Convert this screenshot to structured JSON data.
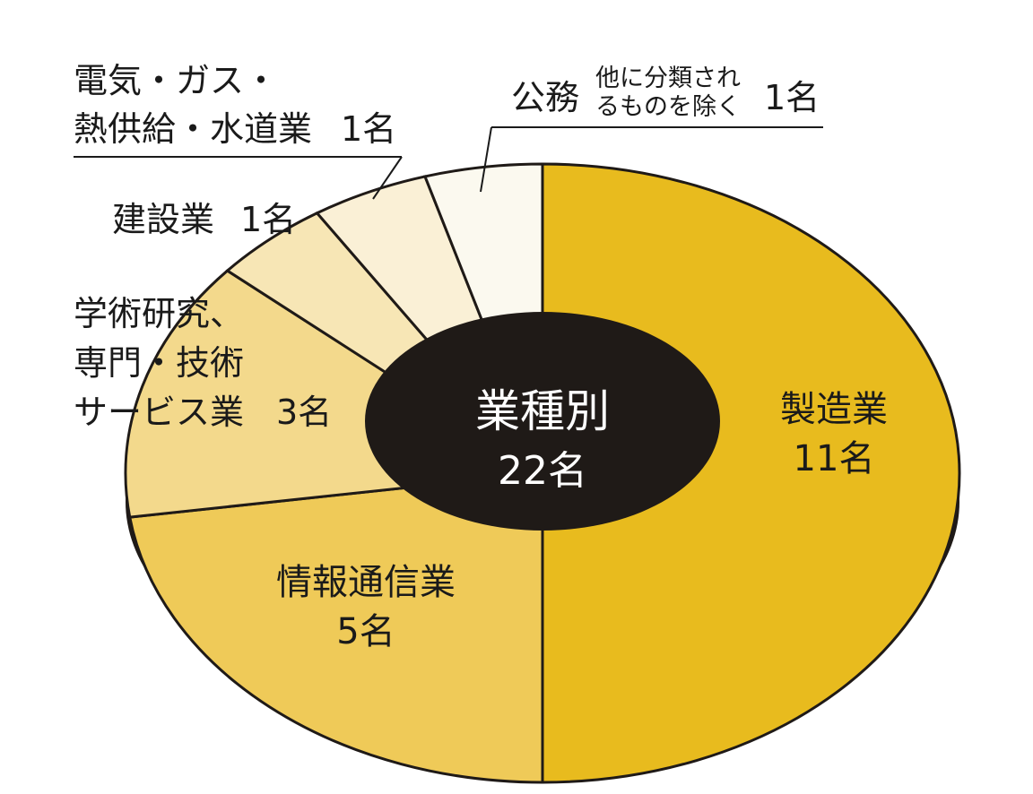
{
  "chart_data": {
    "type": "pie",
    "title": "業種別",
    "total_label": "22名",
    "total": 22,
    "slices": [
      {
        "label_lines": [
          "製造業"
        ],
        "value": 11,
        "value_label": "11名",
        "color": "#e8bb1e"
      },
      {
        "label_lines": [
          "情報通信業"
        ],
        "value": 5,
        "value_label": "5名",
        "color": "#efca58"
      },
      {
        "label_lines": [
          "学術研究、",
          "専門・技術",
          "サービス業"
        ],
        "value": 3,
        "value_label": "3名",
        "color": "#f3d98c"
      },
      {
        "label_lines": [
          "建設業"
        ],
        "value": 1,
        "value_label": "1名",
        "color": "#f7e6b5"
      },
      {
        "label_lines": [
          "電気・ガス・",
          "熱供給・水道業"
        ],
        "value": 1,
        "value_label": "1名",
        "color": "#faf0d6"
      },
      {
        "label_lines": [
          "公務"
        ],
        "note_lines": [
          "他に分類され",
          "るものを除く"
        ],
        "value": 1,
        "value_label": "1名",
        "color": "#fbf9ef"
      }
    ]
  }
}
